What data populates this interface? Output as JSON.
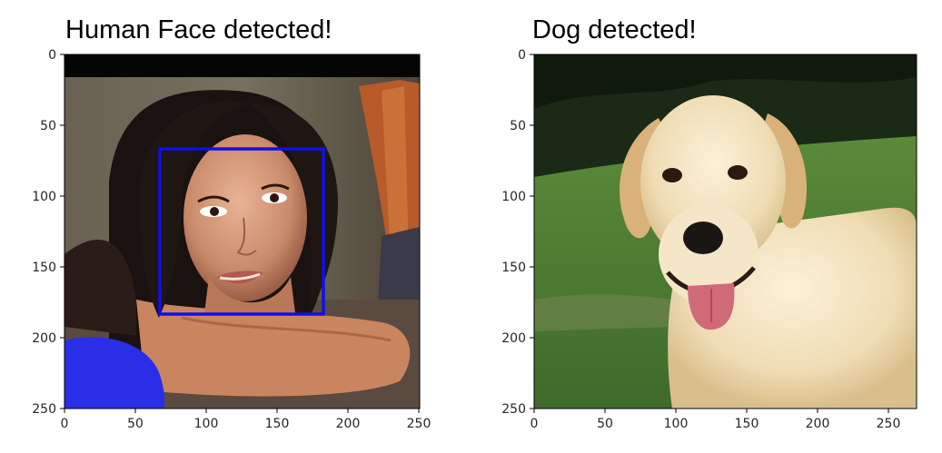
{
  "left_panel": {
    "title": "Human Face detected!",
    "x_ticks": [
      "0",
      "50",
      "100",
      "150",
      "200",
      "250"
    ],
    "y_ticks": [
      "0",
      "50",
      "100",
      "150",
      "200",
      "250"
    ],
    "detection_box_color": "#1010e8",
    "image_subject": "woman-portrait"
  },
  "right_panel": {
    "title": "Dog detected!",
    "x_ticks": [
      "0",
      "50",
      "100",
      "150",
      "200",
      "250"
    ],
    "y_ticks": [
      "0",
      "50",
      "100",
      "150",
      "200",
      "250"
    ],
    "image_subject": "yellow-labrador"
  }
}
